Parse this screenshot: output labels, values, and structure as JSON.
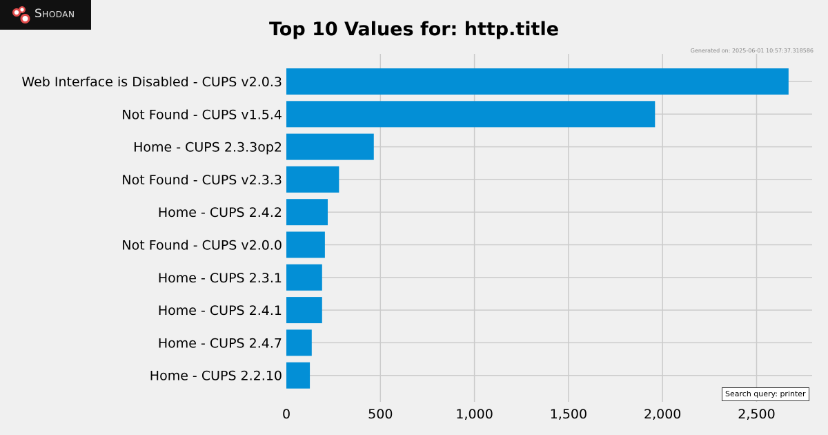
{
  "logo": {
    "text": "Shodan",
    "icon": "shodan-logo-icon",
    "colors": {
      "background": "#111111",
      "dots": "#e04b4b"
    }
  },
  "generated_label": "Generated on: 2025-06-01 10:57:37.318586",
  "search_query_label": "Search query: printer",
  "colors": {
    "bar": "#038fd6",
    "grid": "#cbcbcb",
    "background": "#f0f0f0"
  },
  "chart_data": {
    "type": "bar",
    "orientation": "horizontal",
    "title": "Top 10 Values for: http.title",
    "categories": [
      "Web Interface is Disabled - CUPS v2.0.3",
      "Not Found - CUPS v1.5.4",
      "Home - CUPS 2.3.3op2",
      "Not Found - CUPS v2.3.3",
      "Home - CUPS 2.4.2",
      "Not Found - CUPS v2.0.0",
      "Home - CUPS 2.3.1",
      "Home - CUPS 2.4.1",
      "Home - CUPS 2.4.7",
      "Home - CUPS 2.2.10"
    ],
    "values": [
      2670,
      1960,
      465,
      280,
      220,
      205,
      190,
      190,
      135,
      125
    ],
    "xlim": [
      0,
      2800
    ],
    "xticks": [
      0,
      500,
      1000,
      1500,
      2000,
      2500
    ],
    "xtick_labels": [
      "0",
      "500",
      "1,000",
      "1,500",
      "2,000",
      "2,500"
    ],
    "grid": true
  }
}
